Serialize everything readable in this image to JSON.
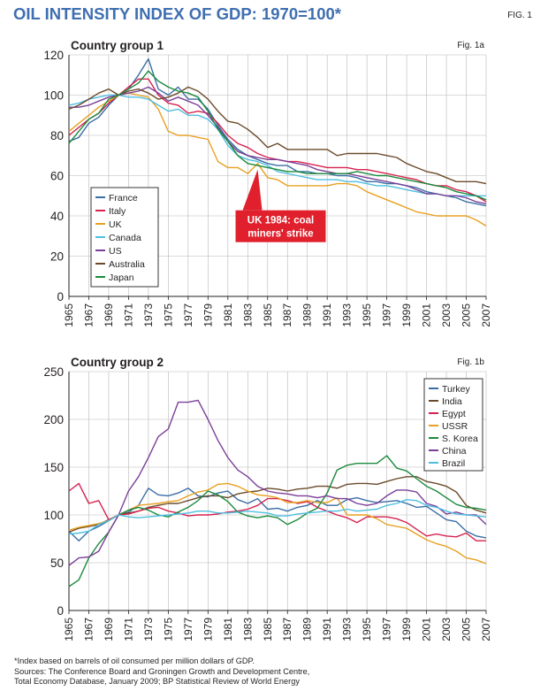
{
  "header": {
    "title": "OIL INTENSITY INDEX OF GDP: 1970=100*",
    "fig_label": "FIG. 1"
  },
  "colors": {
    "France": "#3a6ea5",
    "Italy": "#d6224f",
    "UK": "#e8a020",
    "Canada": "#4fbfe0",
    "US": "#7b3f98",
    "Australia": "#6b4a2b",
    "Japan": "#1a8a3c",
    "Turkey": "#3a6ea5",
    "India": "#6b4a2b",
    "Egypt": "#d6224f",
    "USSR": "#e8a020",
    "S. Korea": "#1a8a3c",
    "China": "#7b3f98",
    "Brazil": "#4fbfe0",
    "callout": "#e0202c"
  },
  "chart_data": [
    {
      "type": "line",
      "title": "Country group 1",
      "fig_label": "Fig. 1a",
      "xlabel": "",
      "ylabel": "",
      "ylim": [
        0,
        120
      ],
      "yticks": [
        "0",
        "20",
        "40",
        "60",
        "80",
        "100",
        "120"
      ],
      "xlim": [
        1965,
        2007
      ],
      "xticks": [
        "1965",
        "1967",
        "1969",
        "1971",
        "1973",
        "1975",
        "1977",
        "1979",
        "1981",
        "1983",
        "1985",
        "1987",
        "1989",
        "1991",
        "1993",
        "1995",
        "1997",
        "1999",
        "2001",
        "2003",
        "2005",
        "2007"
      ],
      "legend_position": "lower-left",
      "grid": true,
      "annotation": {
        "text_line1": "UK 1984: coal",
        "text_line2": "miners' strike",
        "x": 1984,
        "y": 63
      },
      "x": [
        1965,
        1966,
        1967,
        1968,
        1969,
        1970,
        1971,
        1972,
        1973,
        1974,
        1975,
        1976,
        1977,
        1978,
        1979,
        1980,
        1981,
        1982,
        1983,
        1984,
        1985,
        1986,
        1987,
        1988,
        1989,
        1990,
        1991,
        1992,
        1993,
        1994,
        1995,
        1996,
        1997,
        1998,
        1999,
        2000,
        2001,
        2002,
        2003,
        2004,
        2005,
        2006,
        2007
      ],
      "series": [
        {
          "name": "France",
          "values": [
            77,
            79,
            86,
            89,
            95,
            100,
            103,
            110,
            118,
            103,
            100,
            104,
            98,
            98,
            93,
            85,
            78,
            73,
            70,
            68,
            66,
            65,
            65,
            62,
            62,
            61,
            61,
            60,
            60,
            59,
            57,
            57,
            56,
            56,
            55,
            54,
            52,
            51,
            50,
            49,
            47,
            46,
            45
          ]
        },
        {
          "name": "Italy",
          "values": [
            80,
            84,
            88,
            91,
            96,
            100,
            104,
            108,
            108,
            100,
            96,
            95,
            91,
            92,
            91,
            86,
            80,
            76,
            74,
            71,
            69,
            68,
            67,
            67,
            66,
            65,
            64,
            64,
            64,
            63,
            63,
            62,
            61,
            60,
            59,
            58,
            56,
            55,
            55,
            53,
            52,
            50,
            47
          ]
        },
        {
          "name": "UK",
          "values": [
            82,
            86,
            90,
            94,
            97,
            100,
            101,
            100,
            99,
            93,
            82,
            80,
            80,
            79,
            78,
            67,
            64,
            64,
            61,
            66,
            59,
            58,
            55,
            55,
            55,
            55,
            55,
            56,
            56,
            55,
            52,
            50,
            48,
            46,
            44,
            42,
            41,
            40,
            40,
            40,
            40,
            38,
            35
          ]
        },
        {
          "name": "Canada",
          "values": [
            95,
            96,
            98,
            99,
            100,
            100,
            99,
            99,
            98,
            95,
            92,
            93,
            90,
            90,
            88,
            83,
            75,
            70,
            68,
            67,
            65,
            62,
            61,
            60,
            59,
            58,
            58,
            58,
            57,
            57,
            56,
            55,
            55,
            54,
            53,
            52,
            51,
            51,
            50,
            50,
            50,
            50,
            50
          ]
        },
        {
          "name": "US",
          "values": [
            94,
            94,
            95,
            97,
            99,
            100,
            101,
            102,
            104,
            101,
            97,
            99,
            97,
            95,
            90,
            84,
            77,
            72,
            70,
            69,
            68,
            68,
            67,
            66,
            65,
            63,
            62,
            61,
            61,
            60,
            59,
            58,
            57,
            56,
            55,
            53,
            51,
            51,
            50,
            50,
            49,
            47,
            46
          ]
        },
        {
          "name": "Australia",
          "values": [
            93,
            95,
            98,
            101,
            103,
            100,
            102,
            103,
            101,
            98,
            99,
            101,
            104,
            102,
            98,
            92,
            87,
            86,
            83,
            79,
            74,
            76,
            73,
            73,
            73,
            73,
            73,
            70,
            71,
            71,
            71,
            71,
            70,
            69,
            66,
            64,
            62,
            61,
            59,
            57,
            57,
            57,
            56
          ]
        },
        {
          "name": "Japan",
          "values": [
            76,
            82,
            88,
            91,
            98,
            100,
            103,
            106,
            112,
            107,
            104,
            102,
            101,
            99,
            92,
            83,
            77,
            70,
            66,
            65,
            64,
            63,
            62,
            62,
            61,
            61,
            61,
            61,
            61,
            62,
            61,
            60,
            60,
            59,
            58,
            57,
            56,
            55,
            54,
            52,
            51,
            50,
            48
          ]
        }
      ]
    },
    {
      "type": "line",
      "title": "Country group 2",
      "fig_label": "Fig. 1b",
      "xlabel": "",
      "ylabel": "",
      "ylim": [
        0,
        250
      ],
      "yticks": [
        "0",
        "50",
        "100",
        "150",
        "200",
        "250"
      ],
      "xlim": [
        1965,
        2007
      ],
      "xticks": [
        "1965",
        "1967",
        "1969",
        "1971",
        "1973",
        "1975",
        "1977",
        "1979",
        "1981",
        "1983",
        "1985",
        "1987",
        "1989",
        "1991",
        "1993",
        "1995",
        "1997",
        "1999",
        "2001",
        "2003",
        "2005",
        "2007"
      ],
      "legend_position": "top-right",
      "grid": true,
      "x": [
        1965,
        1966,
        1967,
        1968,
        1969,
        1970,
        1971,
        1972,
        1973,
        1974,
        1975,
        1976,
        1977,
        1978,
        1979,
        1980,
        1981,
        1982,
        1983,
        1984,
        1985,
        1986,
        1987,
        1988,
        1989,
        1990,
        1991,
        1992,
        1993,
        1994,
        1995,
        1996,
        1997,
        1998,
        1999,
        2000,
        2001,
        2002,
        2003,
        2004,
        2005,
        2006,
        2007
      ],
      "series": [
        {
          "name": "Turkey",
          "values": [
            83,
            73,
            83,
            88,
            94,
            100,
            103,
            110,
            128,
            121,
            120,
            123,
            128,
            120,
            119,
            123,
            125,
            116,
            112,
            117,
            106,
            107,
            104,
            108,
            110,
            115,
            110,
            110,
            116,
            118,
            115,
            113,
            114,
            115,
            112,
            108,
            109,
            102,
            95,
            93,
            83,
            78,
            76
          ]
        },
        {
          "name": "India",
          "values": [
            82,
            86,
            88,
            90,
            95,
            100,
            102,
            104,
            108,
            110,
            112,
            112,
            115,
            118,
            120,
            120,
            118,
            122,
            124,
            125,
            128,
            127,
            125,
            127,
            128,
            130,
            130,
            128,
            132,
            133,
            133,
            132,
            135,
            138,
            140,
            140,
            135,
            133,
            130,
            124,
            110,
            105,
            102
          ]
        },
        {
          "name": "Egypt",
          "values": [
            125,
            133,
            112,
            115,
            95,
            100,
            101,
            104,
            107,
            108,
            104,
            102,
            99,
            100,
            100,
            101,
            103,
            104,
            106,
            110,
            117,
            117,
            115,
            112,
            114,
            108,
            104,
            100,
            97,
            92,
            98,
            98,
            98,
            96,
            92,
            85,
            78,
            80,
            78,
            77,
            81,
            73,
            73
          ]
        },
        {
          "name": "USSR",
          "values": [
            84,
            87,
            89,
            91,
            94,
            100,
            105,
            110,
            111,
            112,
            114,
            115,
            120,
            124,
            126,
            132,
            133,
            130,
            125,
            121,
            120,
            118,
            113,
            113,
            115,
            113,
            113,
            118,
            100,
            100,
            100,
            96,
            90,
            88,
            86,
            80,
            74,
            70,
            67,
            62,
            55,
            53,
            49
          ]
        },
        {
          "name": "S. Korea",
          "values": [
            25,
            32,
            55,
            70,
            82,
            100,
            105,
            108,
            105,
            100,
            98,
            103,
            108,
            115,
            125,
            121,
            114,
            103,
            99,
            97,
            99,
            97,
            90,
            95,
            102,
            107,
            123,
            147,
            152,
            154,
            154,
            154,
            162,
            149,
            146,
            138,
            130,
            125,
            118,
            111,
            108,
            107,
            105
          ]
        },
        {
          "name": "China",
          "values": [
            47,
            55,
            56,
            62,
            82,
            100,
            125,
            140,
            160,
            182,
            190,
            218,
            218,
            220,
            200,
            178,
            160,
            147,
            140,
            130,
            125,
            123,
            122,
            120,
            120,
            118,
            120,
            117,
            117,
            112,
            110,
            112,
            120,
            126,
            126,
            124,
            112,
            109,
            101,
            103,
            100,
            100,
            90
          ]
        },
        {
          "name": "Brazil",
          "values": [
            80,
            81,
            83,
            90,
            94,
            100,
            98,
            97,
            98,
            99,
            100,
            101,
            102,
            104,
            104,
            102,
            102,
            103,
            104,
            103,
            102,
            99,
            99,
            101,
            102,
            103,
            104,
            104,
            106,
            104,
            105,
            106,
            110,
            112,
            116,
            115,
            110,
            108,
            104,
            101,
            100,
            99,
            98
          ]
        }
      ]
    }
  ],
  "footer": {
    "note": "*Index based on barrels of oil consumed per million dollars of GDP.",
    "sources_line1": "Sources: The Conference Board and Groningen Growth and Development Centre,",
    "sources_line2": "Total Economy Database, January 2009; BP Statistical Review of World Energy"
  }
}
